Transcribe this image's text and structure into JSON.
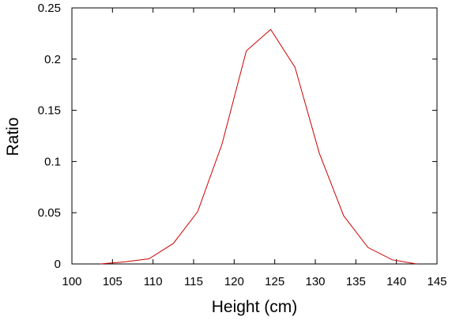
{
  "chart_data": {
    "type": "line",
    "title": "",
    "xlabel": "Height (cm)",
    "ylabel": "Ratio",
    "xlim": [
      100,
      145
    ],
    "ylim": [
      0,
      0.25
    ],
    "x_ticks": [
      {
        "value": 100,
        "label": "100"
      },
      {
        "value": 105,
        "label": "105"
      },
      {
        "value": 110,
        "label": "110"
      },
      {
        "value": 115,
        "label": "115"
      },
      {
        "value": 120,
        "label": "120"
      },
      {
        "value": 125,
        "label": "125"
      },
      {
        "value": 130,
        "label": "130"
      },
      {
        "value": 135,
        "label": "135"
      },
      {
        "value": 140,
        "label": "140"
      },
      {
        "value": 145,
        "label": "145"
      }
    ],
    "y_ticks": [
      {
        "value": 0,
        "label": "0"
      },
      {
        "value": 0.05,
        "label": "0.05"
      },
      {
        "value": 0.1,
        "label": "0.1"
      },
      {
        "value": 0.15,
        "label": "0.15"
      },
      {
        "value": 0.2,
        "label": "0.2"
      },
      {
        "value": 0.25,
        "label": "0.25"
      }
    ],
    "grid": false,
    "legend": "none",
    "series": [
      {
        "color": "#cc0000",
        "x": [
          103.5,
          106.5,
          109.5,
          112.5,
          115.5,
          118.5,
          121.5,
          124.5,
          127.5,
          130.5,
          133.5,
          136.5,
          139.5,
          142.5
        ],
        "y": [
          0.0,
          0.002,
          0.005,
          0.02,
          0.051,
          0.117,
          0.208,
          0.229,
          0.192,
          0.108,
          0.047,
          0.016,
          0.004,
          0.0
        ]
      }
    ]
  }
}
